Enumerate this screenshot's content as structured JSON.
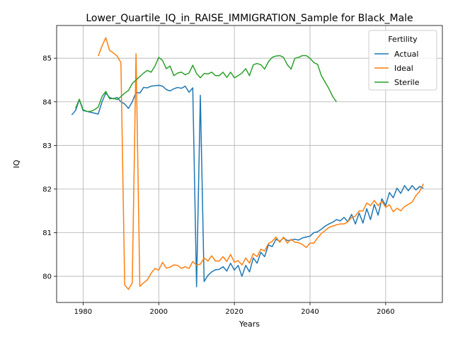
{
  "chart_data": {
    "type": "line",
    "title": "Lower_Quartile_IQ_in_RAISE_IMMIGRATION_Sample for Black_Male",
    "xlabel": "Years",
    "ylabel": "IQ",
    "xlim": [
      1973,
      2075
    ],
    "ylim": [
      79.4,
      85.75
    ],
    "xticks": [
      1980,
      2000,
      2020,
      2040,
      2060
    ],
    "yticks": [
      80,
      81,
      82,
      83,
      84,
      85
    ],
    "grid": true,
    "legend": {
      "title": "Fertility",
      "placement": "top-right"
    },
    "series": [
      {
        "name": "Actual",
        "color": "#1f77b4",
        "points": [
          [
            1977,
            83.7
          ],
          [
            1978,
            83.8
          ],
          [
            1979,
            84.05
          ],
          [
            1980,
            83.8
          ],
          [
            1982,
            83.76
          ],
          [
            1983,
            83.74
          ],
          [
            1984,
            83.72
          ],
          [
            1985,
            84.0
          ],
          [
            1986,
            84.2
          ],
          [
            1987,
            84.1
          ],
          [
            1988,
            84.07
          ],
          [
            1989,
            84.1
          ],
          [
            1990,
            84.0
          ],
          [
            1991,
            83.95
          ],
          [
            1992,
            83.85
          ],
          [
            1993,
            84.0
          ],
          [
            1994,
            84.22
          ],
          [
            1995,
            84.2
          ],
          [
            1996,
            84.33
          ],
          [
            1997,
            84.32
          ],
          [
            1998,
            84.36
          ],
          [
            1999,
            84.37
          ],
          [
            2000,
            84.38
          ],
          [
            2001,
            84.36
          ],
          [
            2002,
            84.28
          ],
          [
            2003,
            84.25
          ],
          [
            2004,
            84.3
          ],
          [
            2005,
            84.33
          ],
          [
            2006,
            84.31
          ],
          [
            2007,
            84.36
          ],
          [
            2008,
            84.22
          ],
          [
            2009,
            84.32
          ],
          [
            2010,
            79.76
          ],
          [
            2011,
            84.15
          ],
          [
            2012,
            79.88
          ],
          [
            2013,
            80.02
          ],
          [
            2014,
            80.1
          ],
          [
            2015,
            80.15
          ],
          [
            2016,
            80.16
          ],
          [
            2017,
            80.22
          ],
          [
            2018,
            80.12
          ],
          [
            2019,
            80.3
          ],
          [
            2020,
            80.14
          ],
          [
            2021,
            80.25
          ],
          [
            2022,
            80.0
          ],
          [
            2023,
            80.25
          ],
          [
            2024,
            80.1
          ],
          [
            2025,
            80.42
          ],
          [
            2026,
            80.3
          ],
          [
            2027,
            80.55
          ],
          [
            2028,
            80.45
          ],
          [
            2029,
            80.72
          ],
          [
            2030,
            80.68
          ],
          [
            2031,
            80.85
          ],
          [
            2032,
            80.8
          ],
          [
            2033,
            80.88
          ],
          [
            2034,
            80.82
          ],
          [
            2035,
            80.83
          ],
          [
            2036,
            80.85
          ],
          [
            2037,
            80.83
          ],
          [
            2038,
            80.88
          ],
          [
            2039,
            80.9
          ],
          [
            2040,
            80.92
          ],
          [
            2041,
            81.0
          ],
          [
            2042,
            81.02
          ],
          [
            2043,
            81.08
          ],
          [
            2044,
            81.15
          ],
          [
            2045,
            81.2
          ],
          [
            2046,
            81.24
          ],
          [
            2047,
            81.3
          ],
          [
            2048,
            81.27
          ],
          [
            2049,
            81.35
          ],
          [
            2050,
            81.25
          ],
          [
            2051,
            81.42
          ],
          [
            2052,
            81.2
          ],
          [
            2053,
            81.45
          ],
          [
            2054,
            81.22
          ],
          [
            2055,
            81.55
          ],
          [
            2056,
            81.3
          ],
          [
            2057,
            81.65
          ],
          [
            2058,
            81.4
          ],
          [
            2059,
            81.78
          ],
          [
            2060,
            81.62
          ],
          [
            2061,
            81.92
          ],
          [
            2062,
            81.8
          ],
          [
            2063,
            82.02
          ],
          [
            2064,
            81.9
          ],
          [
            2065,
            82.08
          ],
          [
            2066,
            81.96
          ],
          [
            2067,
            82.08
          ],
          [
            2068,
            81.98
          ],
          [
            2069,
            82.06
          ],
          [
            2070,
            82.02
          ]
        ]
      },
      {
        "name": "Ideal",
        "color": "#ff7f0e",
        "points": [
          [
            1984,
            85.05
          ],
          [
            1985,
            85.28
          ],
          [
            1986,
            85.47
          ],
          [
            1987,
            85.18
          ],
          [
            1988,
            85.12
          ],
          [
            1989,
            85.05
          ],
          [
            1990,
            84.9
          ],
          [
            1991,
            79.8
          ],
          [
            1992,
            79.7
          ],
          [
            1993,
            79.85
          ],
          [
            1994,
            85.1
          ],
          [
            1995,
            79.77
          ],
          [
            1996,
            79.85
          ],
          [
            1997,
            79.92
          ],
          [
            1998,
            80.07
          ],
          [
            1999,
            80.18
          ],
          [
            2000,
            80.14
          ],
          [
            2001,
            80.32
          ],
          [
            2002,
            80.19
          ],
          [
            2003,
            80.21
          ],
          [
            2004,
            80.26
          ],
          [
            2005,
            80.25
          ],
          [
            2006,
            80.18
          ],
          [
            2007,
            80.22
          ],
          [
            2008,
            80.18
          ],
          [
            2009,
            80.34
          ],
          [
            2010,
            80.25
          ],
          [
            2011,
            80.28
          ],
          [
            2012,
            80.42
          ],
          [
            2013,
            80.35
          ],
          [
            2014,
            80.47
          ],
          [
            2015,
            80.35
          ],
          [
            2016,
            80.35
          ],
          [
            2017,
            80.45
          ],
          [
            2018,
            80.34
          ],
          [
            2019,
            80.5
          ],
          [
            2020,
            80.32
          ],
          [
            2021,
            80.36
          ],
          [
            2022,
            80.26
          ],
          [
            2023,
            80.42
          ],
          [
            2024,
            80.3
          ],
          [
            2025,
            80.52
          ],
          [
            2026,
            80.45
          ],
          [
            2027,
            80.62
          ],
          [
            2028,
            80.58
          ],
          [
            2029,
            80.75
          ],
          [
            2030,
            80.8
          ],
          [
            2031,
            80.9
          ],
          [
            2032,
            80.78
          ],
          [
            2033,
            80.9
          ],
          [
            2034,
            80.76
          ],
          [
            2035,
            80.85
          ],
          [
            2036,
            80.78
          ],
          [
            2037,
            80.77
          ],
          [
            2038,
            80.73
          ],
          [
            2039,
            80.66
          ],
          [
            2040,
            80.76
          ],
          [
            2041,
            80.76
          ],
          [
            2042,
            80.88
          ],
          [
            2043,
            80.98
          ],
          [
            2044,
            81.05
          ],
          [
            2045,
            81.12
          ],
          [
            2046,
            81.15
          ],
          [
            2047,
            81.18
          ],
          [
            2048,
            81.2
          ],
          [
            2049,
            81.2
          ],
          [
            2050,
            81.25
          ],
          [
            2051,
            81.35
          ],
          [
            2052,
            81.38
          ],
          [
            2053,
            81.5
          ],
          [
            2054,
            81.5
          ],
          [
            2055,
            81.68
          ],
          [
            2056,
            81.62
          ],
          [
            2057,
            81.74
          ],
          [
            2058,
            81.62
          ],
          [
            2059,
            81.72
          ],
          [
            2060,
            81.58
          ],
          [
            2061,
            81.64
          ],
          [
            2062,
            81.48
          ],
          [
            2063,
            81.56
          ],
          [
            2064,
            81.5
          ],
          [
            2065,
            81.6
          ],
          [
            2066,
            81.65
          ],
          [
            2067,
            81.7
          ],
          [
            2068,
            81.85
          ],
          [
            2069,
            81.95
          ],
          [
            2070,
            82.12
          ]
        ]
      },
      {
        "name": "Sterile",
        "color": "#2ca02c",
        "points": [
          [
            1978,
            83.85
          ],
          [
            1979,
            84.06
          ],
          [
            1980,
            83.82
          ],
          [
            1981,
            83.78
          ],
          [
            1982,
            83.78
          ],
          [
            1983,
            83.82
          ],
          [
            1984,
            83.88
          ],
          [
            1985,
            84.12
          ],
          [
            1986,
            84.24
          ],
          [
            1987,
            84.07
          ],
          [
            1988,
            84.08
          ],
          [
            1989,
            84.05
          ],
          [
            1990,
            84.12
          ],
          [
            1991,
            84.2
          ],
          [
            1992,
            84.26
          ],
          [
            1993,
            84.42
          ],
          [
            1994,
            84.5
          ],
          [
            1995,
            84.58
          ],
          [
            1996,
            84.66
          ],
          [
            1997,
            84.72
          ],
          [
            1998,
            84.68
          ],
          [
            1999,
            84.82
          ],
          [
            2000,
            85.02
          ],
          [
            2001,
            84.95
          ],
          [
            2002,
            84.76
          ],
          [
            2003,
            84.82
          ],
          [
            2004,
            84.6
          ],
          [
            2005,
            84.66
          ],
          [
            2006,
            84.68
          ],
          [
            2007,
            84.62
          ],
          [
            2008,
            84.66
          ],
          [
            2009,
            84.84
          ],
          [
            2010,
            84.65
          ],
          [
            2011,
            84.55
          ],
          [
            2012,
            84.65
          ],
          [
            2013,
            84.64
          ],
          [
            2014,
            84.68
          ],
          [
            2015,
            84.6
          ],
          [
            2016,
            84.6
          ],
          [
            2017,
            84.68
          ],
          [
            2018,
            84.56
          ],
          [
            2019,
            84.68
          ],
          [
            2020,
            84.55
          ],
          [
            2021,
            84.6
          ],
          [
            2022,
            84.66
          ],
          [
            2023,
            84.76
          ],
          [
            2024,
            84.6
          ],
          [
            2025,
            84.85
          ],
          [
            2026,
            84.88
          ],
          [
            2027,
            84.85
          ],
          [
            2028,
            84.75
          ],
          [
            2029,
            84.92
          ],
          [
            2030,
            85.02
          ],
          [
            2031,
            85.05
          ],
          [
            2032,
            85.06
          ],
          [
            2033,
            85.02
          ],
          [
            2034,
            84.85
          ],
          [
            2035,
            84.75
          ],
          [
            2036,
            85.0
          ],
          [
            2037,
            85.02
          ],
          [
            2038,
            85.06
          ],
          [
            2039,
            85.06
          ],
          [
            2040,
            85.0
          ],
          [
            2041,
            84.9
          ],
          [
            2042,
            84.86
          ],
          [
            2043,
            84.6
          ],
          [
            2044,
            84.45
          ],
          [
            2045,
            84.3
          ],
          [
            2046,
            84.12
          ],
          [
            2047,
            84.0
          ]
        ]
      }
    ]
  }
}
